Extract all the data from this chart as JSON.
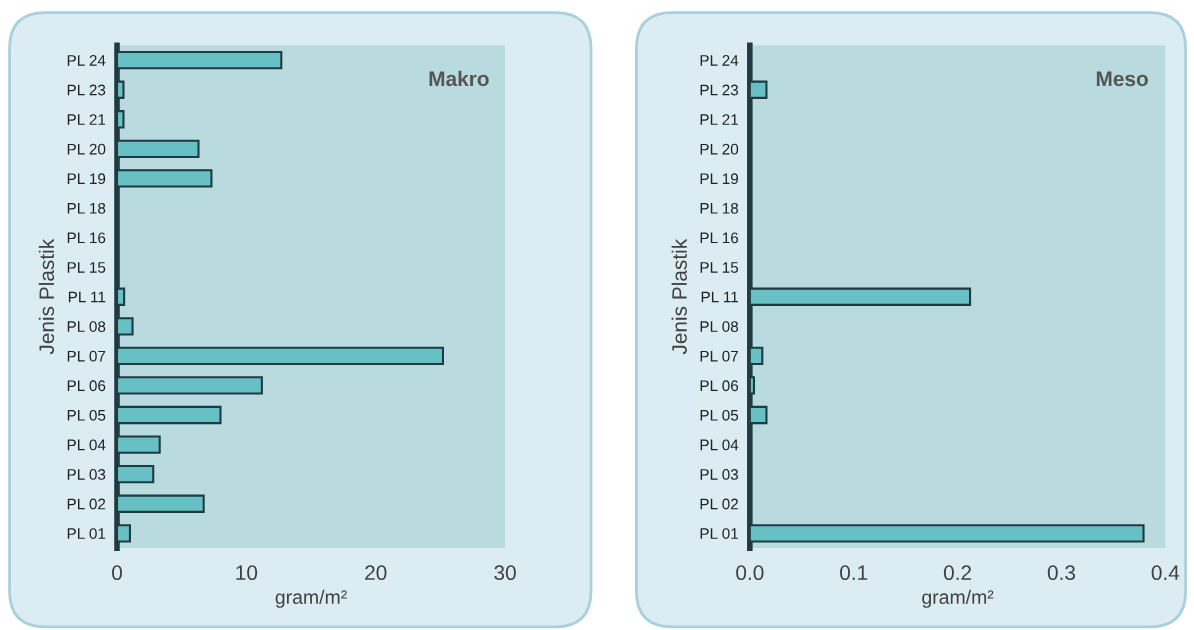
{
  "chart_data": [
    {
      "type": "bar",
      "orientation": "horizontal",
      "title": "Makro",
      "xlabel": "gram/m²",
      "ylabel": "Jenis Plastik",
      "categories": [
        "PL 24",
        "PL 23",
        "PL 21",
        "PL 20",
        "PL 19",
        "PL 18",
        "PL 16",
        "PL 15",
        "PL 11",
        "PL 08",
        "PL 07",
        "PL 06",
        "PL 05",
        "PL 04",
        "PL 03",
        "PL 02",
        "PL 01"
      ],
      "values": [
        12.7,
        0.5,
        0.5,
        6.3,
        7.3,
        0,
        0,
        0,
        0.55,
        1.2,
        25.2,
        11.2,
        8.0,
        3.3,
        2.8,
        6.7,
        1.0
      ],
      "color": "#67c0c4",
      "xlim": [
        0,
        30
      ],
      "xticks": [
        0,
        10,
        20,
        30
      ],
      "grid": false
    },
    {
      "type": "bar",
      "orientation": "horizontal",
      "title": "Meso",
      "xlabel": "gram/m²",
      "ylabel": "Jenis Plastik",
      "categories": [
        "PL 24",
        "PL 23",
        "PL 21",
        "PL 20",
        "PL 19",
        "PL 18",
        "PL 16",
        "PL 15",
        "PL 11",
        "PL 08",
        "PL 07",
        "PL 06",
        "PL 05",
        "PL 04",
        "PL 03",
        "PL 02",
        "PL 01"
      ],
      "values": [
        0,
        0.016,
        0,
        0,
        0,
        0,
        0,
        0,
        0.212,
        0,
        0.012,
        0.004,
        0.016,
        0,
        0,
        0,
        0.379
      ],
      "color": "#67c0c4",
      "xlim": [
        0,
        0.4
      ],
      "xticks": [
        {
          "value": 0,
          "label": "0.0"
        },
        0.1,
        0.2,
        0.3,
        0.4
      ],
      "grid": false
    }
  ]
}
